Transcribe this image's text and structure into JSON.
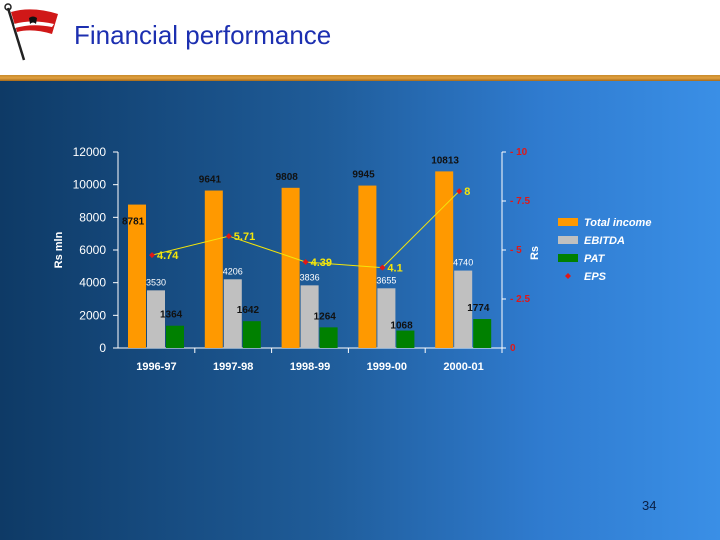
{
  "slide": {
    "title": "Financial performance",
    "page_number": "34"
  },
  "colors": {
    "total_income": "#ff9900",
    "ebitda": "#c0c0c0",
    "pat": "#008000",
    "eps_marker": "#e01818",
    "eps_line": "#f5e60a",
    "eps_label": "#f5e60a",
    "right_axis": "#e01818"
  },
  "chart_data": {
    "type": "bar",
    "categories": [
      "1996-97",
      "1997-98",
      "1998-99",
      "1999-00",
      "2000-01"
    ],
    "ylabel": "Rs mln",
    "ylim": [
      0,
      12000
    ],
    "yticks": [
      0,
      2000,
      4000,
      6000,
      8000,
      10000,
      12000
    ],
    "y2label": "Rs",
    "y2lim": [
      0,
      10
    ],
    "y2ticks": [
      "0",
      "2.5",
      "5",
      "7.5",
      "10"
    ],
    "series": [
      {
        "name": "Total income",
        "type": "bar",
        "values": [
          8781,
          9641,
          9808,
          9945,
          10813
        ]
      },
      {
        "name": "EBITDA",
        "type": "bar",
        "values": [
          3530,
          4206,
          3836,
          3655,
          4740
        ]
      },
      {
        "name": "PAT",
        "type": "bar",
        "values": [
          1364,
          1642,
          1264,
          1068,
          1774
        ]
      },
      {
        "name": "EPS",
        "type": "line",
        "axis": "right",
        "values": [
          4.74,
          5.71,
          4.39,
          4.1,
          8
        ]
      }
    ],
    "legend": "right"
  }
}
